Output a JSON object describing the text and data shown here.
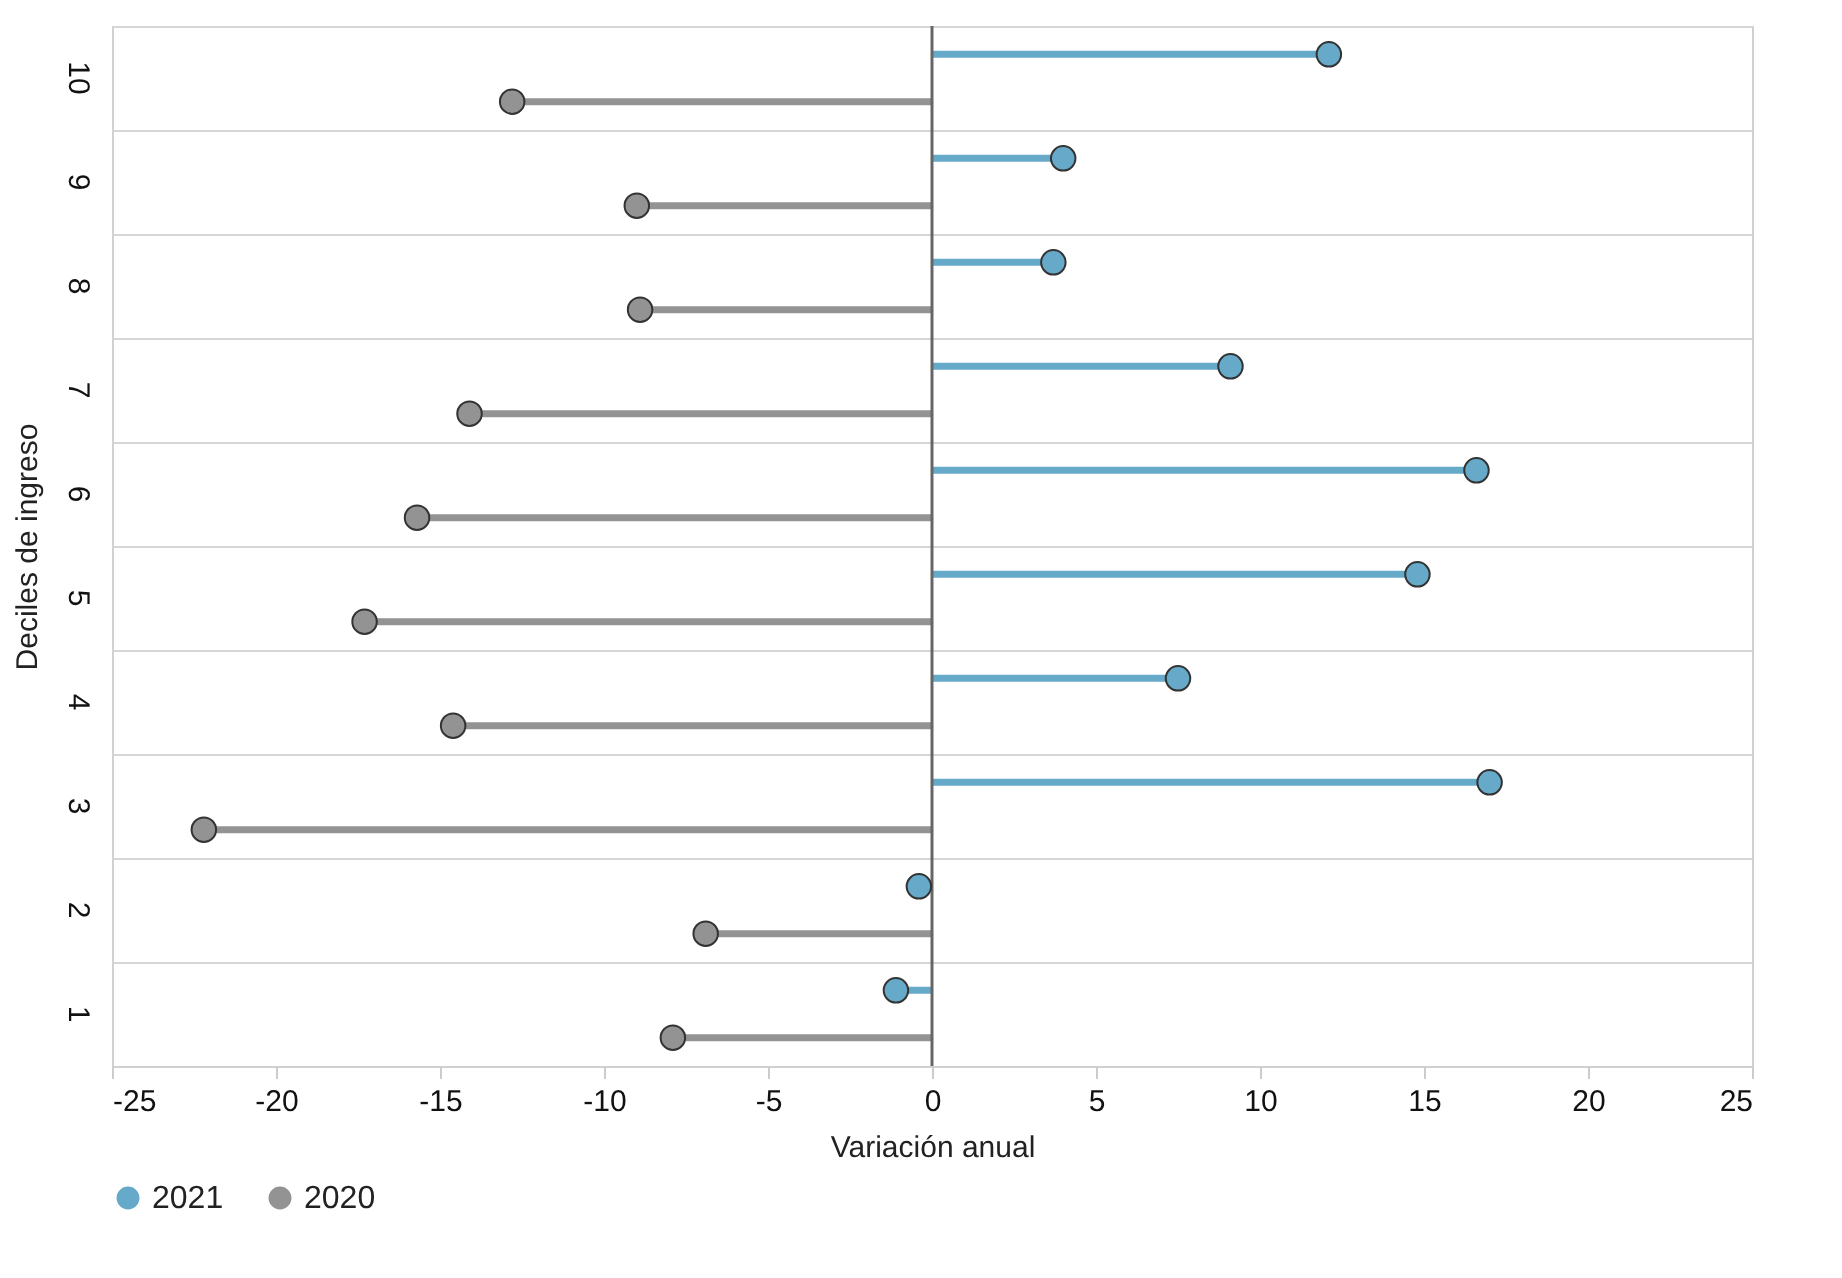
{
  "chart_data": {
    "type": "lollipop",
    "orientation": "horizontal",
    "xlabel": "Variación anual",
    "ylabel": "Deciles de ingreso",
    "categories": [
      "10",
      "9",
      "8",
      "7",
      "6",
      "5",
      "4",
      "3",
      "2",
      "1"
    ],
    "series": [
      {
        "name": "2021",
        "color": "#66a9c9",
        "values": [
          12.1,
          4.0,
          3.7,
          9.1,
          16.6,
          14.8,
          7.5,
          17.0,
          -0.4,
          -1.1
        ]
      },
      {
        "name": "2020",
        "color": "#939393",
        "values": [
          -12.8,
          -9.0,
          -8.9,
          -14.1,
          -15.7,
          -17.3,
          -14.6,
          -22.2,
          -6.9,
          -7.9
        ]
      }
    ],
    "xlim": [
      -25,
      25
    ],
    "xticks": [
      -25,
      -20,
      -15,
      -10,
      -5,
      0,
      5,
      10,
      15,
      20,
      25
    ],
    "ref_lines": [
      {
        "axis": "x",
        "value": 0,
        "color": "#666666"
      }
    ],
    "grid": "y",
    "legend": "bottom",
    "marker": "circle"
  }
}
